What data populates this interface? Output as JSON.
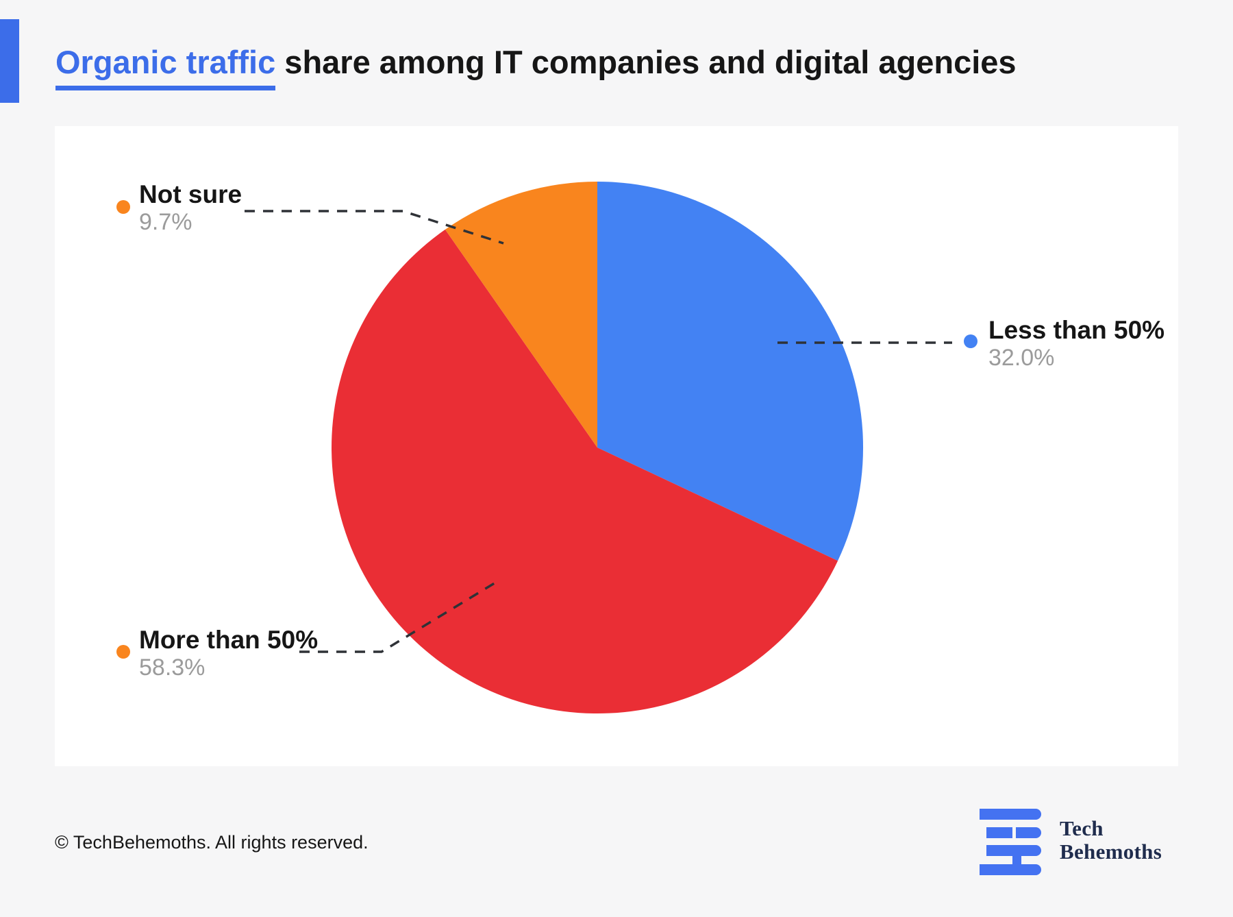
{
  "title": {
    "highlight": "Organic traffic",
    "rest": " share among IT companies and digital agencies"
  },
  "chart_data": {
    "type": "pie",
    "title": "Organic traffic share among IT companies and digital agencies",
    "unit": "%",
    "direction": "clockwise",
    "start_angle_deg": 0,
    "slices": [
      {
        "label": "Less than 50%",
        "value": 32.0,
        "value_label": "32.0%",
        "color": "#4382F3",
        "legend_dot_color": "#4382F3"
      },
      {
        "label": "More than 50%",
        "value": 58.3,
        "value_label": "58.3%",
        "color": "#EA2E35",
        "legend_dot_color": "#F9851E"
      },
      {
        "label": "Not sure",
        "value": 9.7,
        "value_label": "9.7%",
        "color": "#F9851E",
        "legend_dot_color": "#F9851E"
      }
    ]
  },
  "footer": {
    "copyright": "© TechBehemoths. All rights reserved.",
    "logo": {
      "line1": "Tech",
      "line2": "Behemoths"
    }
  },
  "colors": {
    "accent_blue": "#3C6DE9",
    "pie_blue": "#4382F3",
    "pie_red": "#EA2E35",
    "pie_orange": "#F9851E",
    "percent_gray": "#9B9B9B",
    "leader_dash": "#2F3237",
    "logo_navy": "#1F2C4D",
    "logo_blue": "#4472F1",
    "background": "#F6F6F7",
    "panel_white": "#FFFFFF",
    "text_black": "#161616"
  }
}
